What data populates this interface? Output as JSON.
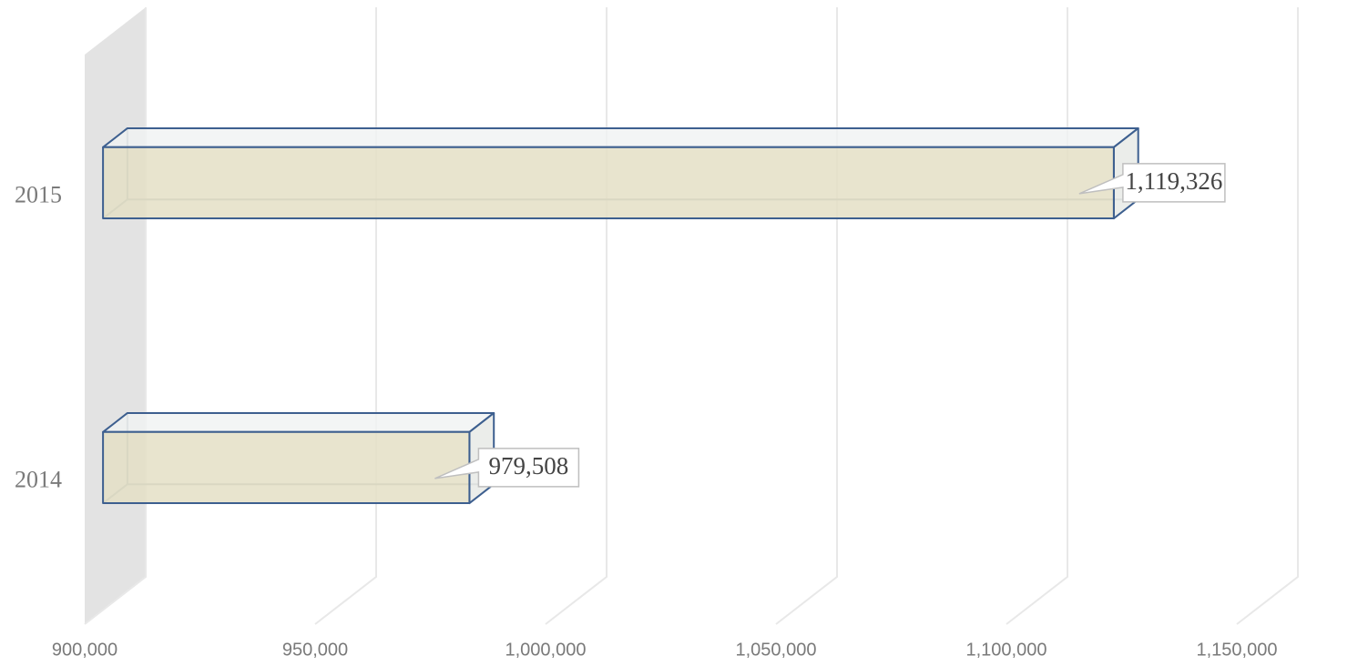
{
  "chart_data": {
    "type": "bar3d",
    "orientation": "horizontal",
    "categories": [
      "2015",
      "2014"
    ],
    "values": [
      1119326,
      979508
    ],
    "value_labels": [
      "1,119,326",
      "979,508"
    ],
    "color": "#e4dfc6",
    "edge_color": "#3d5f8f",
    "xlim": [
      900000,
      1150000
    ],
    "xticks": [
      {
        "value": 900000,
        "label": "900,000"
      },
      {
        "value": 950000,
        "label": "950,000"
      },
      {
        "value": 1000000,
        "label": "1,000,000"
      },
      {
        "value": 1050000,
        "label": "1,050,000"
      },
      {
        "value": 1100000,
        "label": "1,100,000"
      },
      {
        "value": 1150000,
        "label": "1,150,000"
      }
    ],
    "grid": true
  }
}
